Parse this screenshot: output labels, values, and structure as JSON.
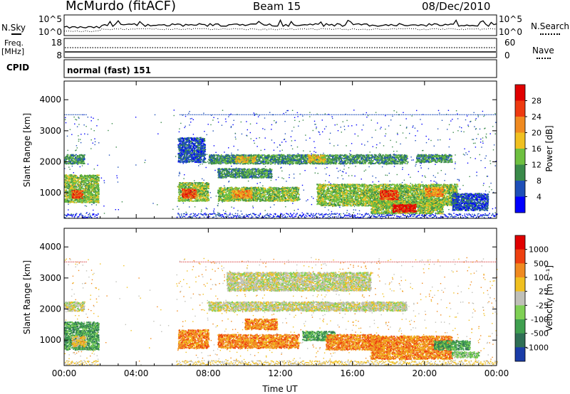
{
  "header": {
    "station": "McMurdo (fitACF)",
    "beam": "Beam 15",
    "date": "08/Dec/2010"
  },
  "top_panels": {
    "nsky_label": "N.Sky",
    "nsearch_label": "N.Search",
    "nsky_ticks": [
      "10^5",
      "10^0"
    ],
    "nsearch_ticks": [
      "10^5",
      "10^0"
    ],
    "freq_label": "Freq.",
    "freq_unit": "[MHz]",
    "freq_ticks": [
      "18",
      "8"
    ],
    "nave_label": "Nave",
    "nave_ticks": [
      "60",
      "0"
    ],
    "cpid_label": "CPID",
    "cpid_value": "normal (fast) 151"
  },
  "chart_data": [
    {
      "type": "heatmap",
      "name": "power",
      "ylabel": "Slant Range [km]",
      "yticks": [
        "1000",
        "2000",
        "3000",
        "4000"
      ],
      "ylim": [
        180,
        4600
      ],
      "xlim": [
        0,
        24
      ],
      "colorbar": {
        "label": "Power [dB]",
        "ticks": [
          "4",
          "8",
          "12",
          "16",
          "20",
          "24",
          "28"
        ],
        "colors": [
          "#0000ff",
          "#1e4fb8",
          "#3a8a4a",
          "#6ec040",
          "#f0c020",
          "#f08a20",
          "#ee3a10",
          "#e00000"
        ]
      },
      "regions": [
        {
          "t0": 0.0,
          "t1": 1.1,
          "r0": 1950,
          "r1": 2250,
          "level": 2
        },
        {
          "t0": 0.0,
          "t1": 1.9,
          "r0": 700,
          "r1": 1600,
          "level": 3
        },
        {
          "t0": 0.4,
          "t1": 1.0,
          "r0": 850,
          "r1": 1100,
          "level": 6
        },
        {
          "t0": 6.3,
          "t1": 7.8,
          "r0": 2000,
          "r1": 2800,
          "level": 1
        },
        {
          "t0": 6.3,
          "t1": 8.0,
          "r0": 750,
          "r1": 1350,
          "level": 3
        },
        {
          "t0": 6.5,
          "t1": 7.3,
          "r0": 850,
          "r1": 1150,
          "level": 6
        },
        {
          "t0": 8.0,
          "t1": 19.0,
          "r0": 1950,
          "r1": 2250,
          "level": 2
        },
        {
          "t0": 9.5,
          "t1": 10.6,
          "r0": 2000,
          "r1": 2200,
          "level": 4
        },
        {
          "t0": 13.5,
          "t1": 14.5,
          "r0": 2000,
          "r1": 2250,
          "level": 4
        },
        {
          "t0": 8.5,
          "t1": 11.5,
          "r0": 1500,
          "r1": 1800,
          "level": 2
        },
        {
          "t0": 8.5,
          "t1": 13.0,
          "r0": 750,
          "r1": 1200,
          "level": 3
        },
        {
          "t0": 9.3,
          "t1": 10.4,
          "r0": 850,
          "r1": 1100,
          "level": 5
        },
        {
          "t0": 14.0,
          "t1": 21.8,
          "r0": 600,
          "r1": 1300,
          "level": 3
        },
        {
          "t0": 17.5,
          "t1": 18.5,
          "r0": 800,
          "r1": 1100,
          "level": 6
        },
        {
          "t0": 20.0,
          "t1": 21.0,
          "r0": 900,
          "r1": 1200,
          "level": 5
        },
        {
          "t0": 17.0,
          "t1": 21.0,
          "r0": 350,
          "r1": 750,
          "level": 3
        },
        {
          "t0": 18.2,
          "t1": 19.5,
          "r0": 400,
          "r1": 650,
          "level": 7
        },
        {
          "t0": 19.5,
          "t1": 21.5,
          "r0": 2000,
          "r1": 2250,
          "level": 2
        },
        {
          "t0": 21.5,
          "t1": 23.5,
          "r0": 450,
          "r1": 1000,
          "level": 1
        }
      ]
    },
    {
      "type": "heatmap",
      "name": "velocity",
      "ylabel": "Slant Range [km]",
      "xlabel": "Time UT",
      "yticks": [
        "1000",
        "2000",
        "3000",
        "4000"
      ],
      "xticks": [
        "00:00",
        "04:00",
        "08:00",
        "12:00",
        "16:00",
        "20:00",
        "00:00"
      ],
      "ylim": [
        180,
        4600
      ],
      "xlim": [
        0,
        24
      ],
      "colorbar": {
        "label": "Velocity [m s⁻¹]",
        "ticks": [
          "1000",
          "500",
          "100",
          "25",
          "-25",
          "-100",
          "-500",
          "-1000"
        ],
        "colors": [
          "#1a3ca8",
          "#2f6f55",
          "#3f9f4f",
          "#7fd055",
          "#c0c0b8",
          "#f0c020",
          "#f08a20",
          "#ee4010",
          "#e00000"
        ]
      },
      "regions": [
        {
          "t0": 0.0,
          "t1": 1.1,
          "r0": 1950,
          "r1": 2250,
          "level": 4
        },
        {
          "t0": 0.0,
          "t1": 1.9,
          "r0": 700,
          "r1": 1600,
          "level": 2
        },
        {
          "t0": 0.4,
          "t1": 1.2,
          "r0": 800,
          "r1": 1150,
          "level": 5
        },
        {
          "t0": 6.3,
          "t1": 8.0,
          "r0": 750,
          "r1": 1350,
          "level": 6
        },
        {
          "t0": 8.0,
          "t1": 19.0,
          "r0": 1950,
          "r1": 2250,
          "level": 4
        },
        {
          "t0": 10.0,
          "t1": 11.8,
          "r0": 1350,
          "r1": 1700,
          "level": 6
        },
        {
          "t0": 8.5,
          "t1": 13.0,
          "r0": 750,
          "r1": 1200,
          "level": 6
        },
        {
          "t0": 13.2,
          "t1": 15.0,
          "r0": 1000,
          "r1": 1300,
          "level": 2
        },
        {
          "t0": 14.5,
          "t1": 17.5,
          "r0": 700,
          "r1": 1200,
          "level": 6
        },
        {
          "t0": 17.0,
          "t1": 21.5,
          "r0": 400,
          "r1": 1150,
          "level": 6
        },
        {
          "t0": 20.5,
          "t1": 22.5,
          "r0": 700,
          "r1": 1000,
          "level": 2
        },
        {
          "t0": 21.5,
          "t1": 23.0,
          "r0": 450,
          "r1": 650,
          "level": 3
        },
        {
          "t0": 9.0,
          "t1": 17.0,
          "r0": 2600,
          "r1": 3200,
          "level": 4
        }
      ]
    }
  ]
}
